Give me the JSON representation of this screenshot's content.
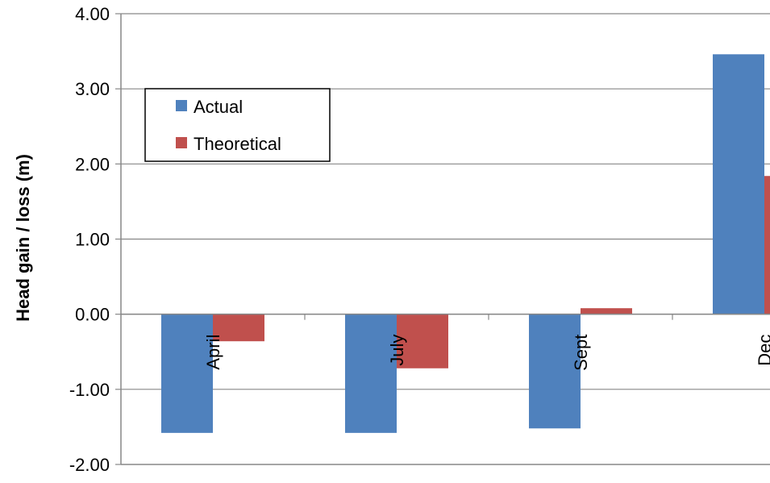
{
  "chart_data": {
    "type": "bar",
    "categories": [
      "April",
      "July",
      "Sept",
      "Dec"
    ],
    "series": [
      {
        "name": "Actual",
        "color": "#4f81bd",
        "values": [
          -1.58,
          -1.58,
          -1.52,
          3.46
        ]
      },
      {
        "name": "Theoretical",
        "color": "#c0504d",
        "values": [
          -0.36,
          -0.72,
          0.08,
          1.84
        ]
      }
    ],
    "title": "",
    "xlabel": "",
    "ylabel": "Head gain / loss (m)",
    "ylim": [
      -2.0,
      4.0
    ],
    "yticks": [
      "-2.00",
      "-1.00",
      "0.00",
      "1.00",
      "2.00",
      "3.00",
      "4.00"
    ],
    "grid": true,
    "legend": "top-left"
  }
}
